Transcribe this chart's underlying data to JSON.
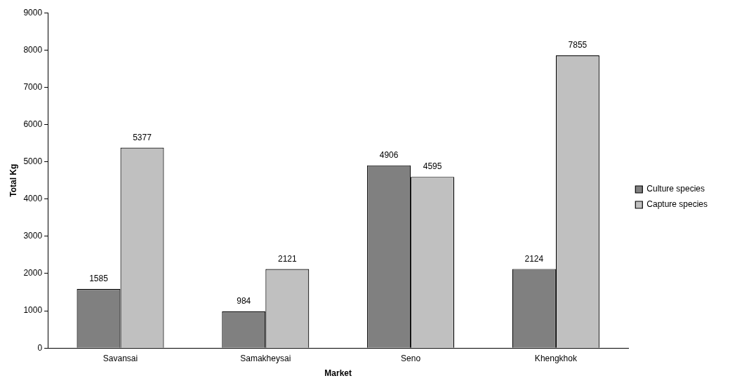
{
  "chart_data": {
    "type": "bar",
    "xlabel": "Market",
    "ylabel": "Total Kg",
    "categories": [
      "Savansai",
      "Samakheysai",
      "Seno",
      "Khengkhok"
    ],
    "series": [
      {
        "name": "Culture species",
        "color": "#808080",
        "values": [
          1585,
          984,
          4906,
          2124
        ]
      },
      {
        "name": "Capture species",
        "color": "#c0c0c0",
        "values": [
          5377,
          2121,
          4595,
          7855
        ]
      }
    ],
    "ylim": [
      0,
      9000
    ],
    "yticks": [
      0,
      1000,
      2000,
      3000,
      4000,
      5000,
      6000,
      7000,
      8000,
      9000
    ],
    "grid": false,
    "legend": "right",
    "data_labels": true
  }
}
